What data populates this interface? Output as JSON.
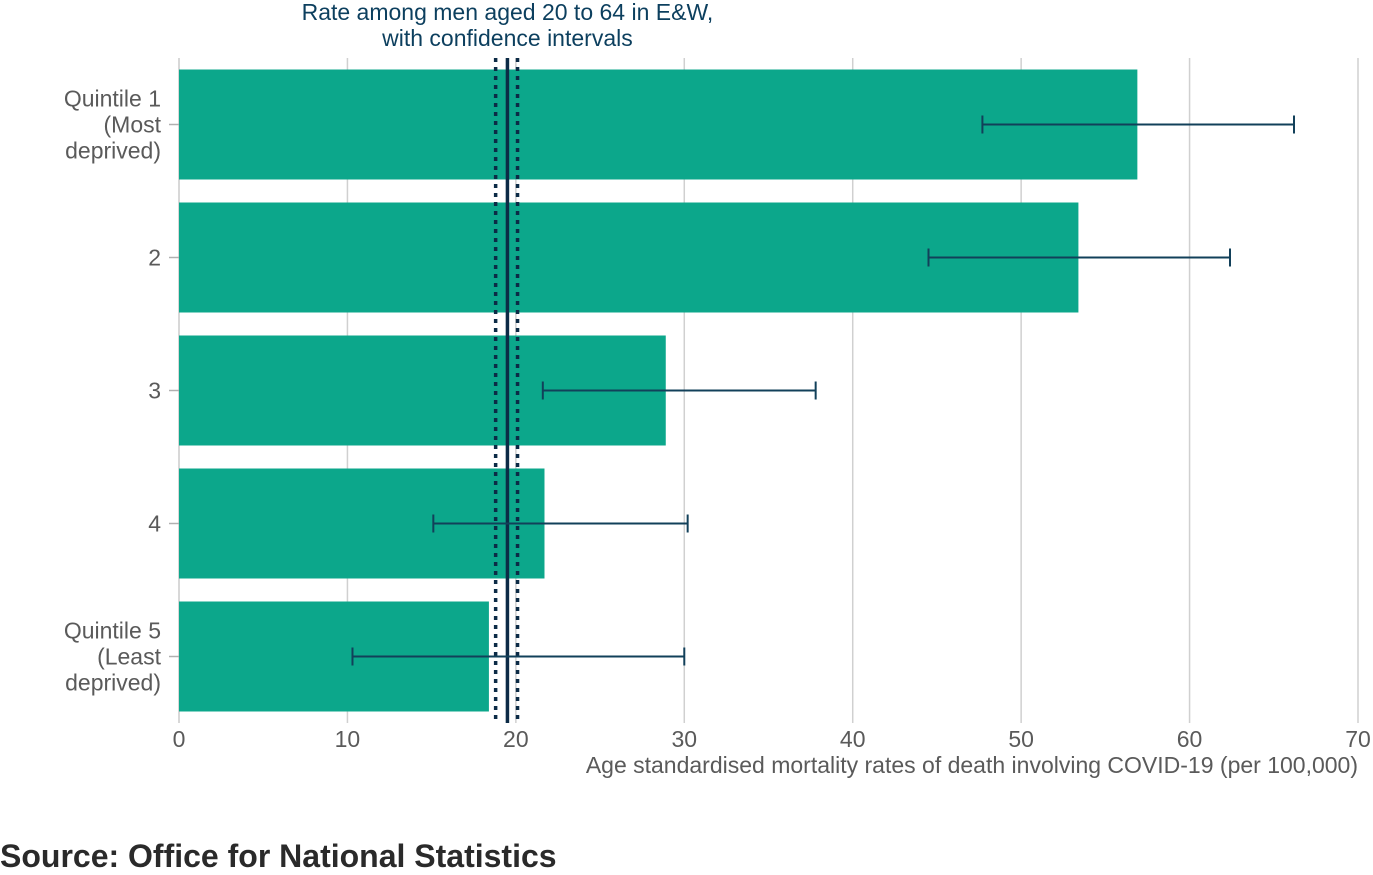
{
  "chart_data": {
    "type": "bar",
    "orientation": "horizontal",
    "categories": [
      "Quintile 1 (Most deprived)",
      "2",
      "3",
      "4",
      "Quintile 5 (Least deprived)"
    ],
    "category_label_lines": [
      [
        "Quintile 1",
        "(Most",
        "deprived)"
      ],
      [
        "2"
      ],
      [
        "3"
      ],
      [
        "4"
      ],
      [
        "Quintile 5",
        "(Least",
        "deprived)"
      ]
    ],
    "values": [
      56.9,
      53.4,
      28.9,
      21.7,
      18.4
    ],
    "ci_lower": [
      47.7,
      44.5,
      21.6,
      15.1,
      10.3
    ],
    "ci_upper": [
      66.2,
      62.4,
      37.8,
      30.2,
      30.0
    ],
    "reference_line": {
      "label_lines": [
        "Rate among men aged 20 to 64 in E&W,",
        "with confidence intervals"
      ],
      "value": 19.5,
      "ci_lower": 18.8,
      "ci_upper": 20.1
    },
    "xlabel": "Age standardised mortality rates of death involving COVID-19 (per 100,000)",
    "xlim": [
      0,
      70
    ],
    "xticks": [
      0,
      10,
      20,
      30,
      40,
      50,
      60,
      70
    ],
    "grid": true,
    "colors": {
      "bar": "#0ca78b",
      "errorbar": "#12405a",
      "reference": "#0c2b46",
      "grid": "#d0d0d0",
      "text": "#5a5a5a",
      "title": "#0c3f5e"
    }
  },
  "source": {
    "label": "Source: Office for National Statistics"
  }
}
